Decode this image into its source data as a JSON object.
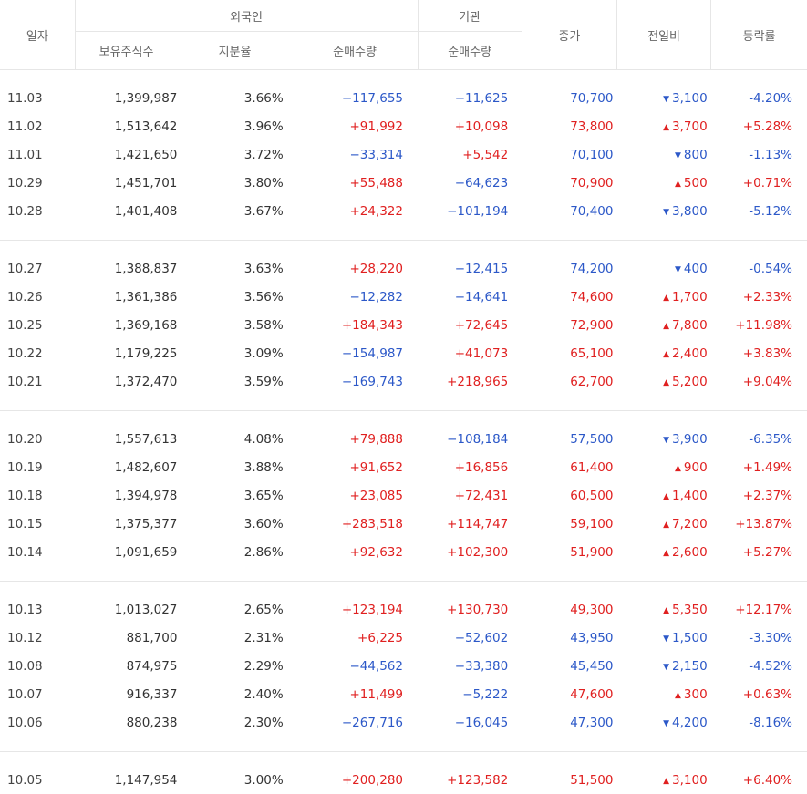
{
  "header": {
    "date": "일자",
    "foreign": "외국인",
    "institution": "기관",
    "close": "종가",
    "change": "전일비",
    "rate": "등락률",
    "holdings": "보유주식수",
    "share": "지분율",
    "foreign_net": "순매수량",
    "inst_net": "순매수량"
  },
  "groups": [
    {
      "rows": [
        {
          "date": "11.03",
          "holdings": "1,399,987",
          "share": "3.66%",
          "fnet": "−117,655",
          "fdir": "down",
          "inet": "−11,625",
          "idir": "down",
          "close": "70,700",
          "cdir": "down",
          "change": "3,100",
          "rate": "-4.20%"
        },
        {
          "date": "11.02",
          "holdings": "1,513,642",
          "share": "3.96%",
          "fnet": "+91,992",
          "fdir": "up",
          "inet": "+10,098",
          "idir": "up",
          "close": "73,800",
          "cdir": "up",
          "change": "3,700",
          "rate": "+5.28%"
        },
        {
          "date": "11.01",
          "holdings": "1,421,650",
          "share": "3.72%",
          "fnet": "−33,314",
          "fdir": "down",
          "inet": "+5,542",
          "idir": "up",
          "close": "70,100",
          "cdir": "down",
          "change": "800",
          "rate": "-1.13%"
        },
        {
          "date": "10.29",
          "holdings": "1,451,701",
          "share": "3.80%",
          "fnet": "+55,488",
          "fdir": "up",
          "inet": "−64,623",
          "idir": "down",
          "close": "70,900",
          "cdir": "up",
          "change": "500",
          "rate": "+0.71%"
        },
        {
          "date": "10.28",
          "holdings": "1,401,408",
          "share": "3.67%",
          "fnet": "+24,322",
          "fdir": "up",
          "inet": "−101,194",
          "idir": "down",
          "close": "70,400",
          "cdir": "down",
          "change": "3,800",
          "rate": "-5.12%"
        }
      ]
    },
    {
      "rows": [
        {
          "date": "10.27",
          "holdings": "1,388,837",
          "share": "3.63%",
          "fnet": "+28,220",
          "fdir": "up",
          "inet": "−12,415",
          "idir": "down",
          "close": "74,200",
          "cdir": "down",
          "change": "400",
          "rate": "-0.54%"
        },
        {
          "date": "10.26",
          "holdings": "1,361,386",
          "share": "3.56%",
          "fnet": "−12,282",
          "fdir": "down",
          "inet": "−14,641",
          "idir": "down",
          "close": "74,600",
          "cdir": "up",
          "change": "1,700",
          "rate": "+2.33%"
        },
        {
          "date": "10.25",
          "holdings": "1,369,168",
          "share": "3.58%",
          "fnet": "+184,343",
          "fdir": "up",
          "inet": "+72,645",
          "idir": "up",
          "close": "72,900",
          "cdir": "up",
          "change": "7,800",
          "rate": "+11.98%"
        },
        {
          "date": "10.22",
          "holdings": "1,179,225",
          "share": "3.09%",
          "fnet": "−154,987",
          "fdir": "down",
          "inet": "+41,073",
          "idir": "up",
          "close": "65,100",
          "cdir": "up",
          "change": "2,400",
          "rate": "+3.83%"
        },
        {
          "date": "10.21",
          "holdings": "1,372,470",
          "share": "3.59%",
          "fnet": "−169,743",
          "fdir": "down",
          "inet": "+218,965",
          "idir": "up",
          "close": "62,700",
          "cdir": "up",
          "change": "5,200",
          "rate": "+9.04%"
        }
      ]
    },
    {
      "rows": [
        {
          "date": "10.20",
          "holdings": "1,557,613",
          "share": "4.08%",
          "fnet": "+79,888",
          "fdir": "up",
          "inet": "−108,184",
          "idir": "down",
          "close": "57,500",
          "cdir": "down",
          "change": "3,900",
          "rate": "-6.35%"
        },
        {
          "date": "10.19",
          "holdings": "1,482,607",
          "share": "3.88%",
          "fnet": "+91,652",
          "fdir": "up",
          "inet": "+16,856",
          "idir": "up",
          "close": "61,400",
          "cdir": "up",
          "change": "900",
          "rate": "+1.49%"
        },
        {
          "date": "10.18",
          "holdings": "1,394,978",
          "share": "3.65%",
          "fnet": "+23,085",
          "fdir": "up",
          "inet": "+72,431",
          "idir": "up",
          "close": "60,500",
          "cdir": "up",
          "change": "1,400",
          "rate": "+2.37%"
        },
        {
          "date": "10.15",
          "holdings": "1,375,377",
          "share": "3.60%",
          "fnet": "+283,518",
          "fdir": "up",
          "inet": "+114,747",
          "idir": "up",
          "close": "59,100",
          "cdir": "up",
          "change": "7,200",
          "rate": "+13.87%"
        },
        {
          "date": "10.14",
          "holdings": "1,091,659",
          "share": "2.86%",
          "fnet": "+92,632",
          "fdir": "up",
          "inet": "+102,300",
          "idir": "up",
          "close": "51,900",
          "cdir": "up",
          "change": "2,600",
          "rate": "+5.27%"
        }
      ]
    },
    {
      "rows": [
        {
          "date": "10.13",
          "holdings": "1,013,027",
          "share": "2.65%",
          "fnet": "+123,194",
          "fdir": "up",
          "inet": "+130,730",
          "idir": "up",
          "close": "49,300",
          "cdir": "up",
          "change": "5,350",
          "rate": "+12.17%"
        },
        {
          "date": "10.12",
          "holdings": "881,700",
          "share": "2.31%",
          "fnet": "+6,225",
          "fdir": "up",
          "inet": "−52,602",
          "idir": "down",
          "close": "43,950",
          "cdir": "down",
          "change": "1,500",
          "rate": "-3.30%"
        },
        {
          "date": "10.08",
          "holdings": "874,975",
          "share": "2.29%",
          "fnet": "−44,562",
          "fdir": "down",
          "inet": "−33,380",
          "idir": "down",
          "close": "45,450",
          "cdir": "down",
          "change": "2,150",
          "rate": "-4.52%"
        },
        {
          "date": "10.07",
          "holdings": "916,337",
          "share": "2.40%",
          "fnet": "+11,499",
          "fdir": "up",
          "inet": "−5,222",
          "idir": "down",
          "close": "47,600",
          "cdir": "up",
          "change": "300",
          "rate": "+0.63%"
        },
        {
          "date": "10.06",
          "holdings": "880,238",
          "share": "2.30%",
          "fnet": "−267,716",
          "fdir": "down",
          "inet": "−16,045",
          "idir": "down",
          "close": "47,300",
          "cdir": "down",
          "change": "4,200",
          "rate": "-8.16%"
        }
      ]
    },
    {
      "rows": [
        {
          "date": "10.05",
          "holdings": "1,147,954",
          "share": "3.00%",
          "fnet": "+200,280",
          "fdir": "up",
          "inet": "+123,582",
          "idir": "up",
          "close": "51,500",
          "cdir": "up",
          "change": "3,100",
          "rate": "+6.40%"
        }
      ]
    }
  ],
  "colors": {
    "up": "#e02020",
    "down": "#2c58c8"
  }
}
